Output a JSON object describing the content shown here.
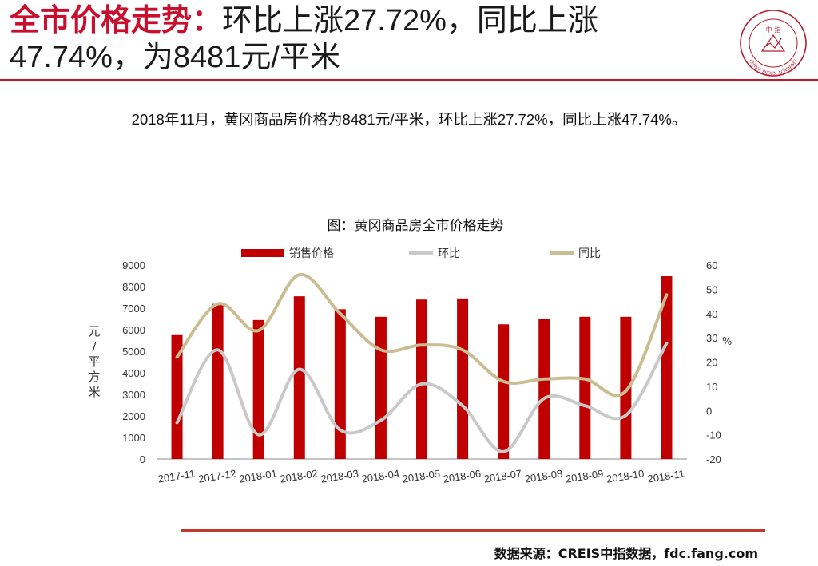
{
  "header": {
    "title_accent": "全市价格走势：",
    "title_rest": "环比上涨27.72%，同比上涨47.74%，为8481元/平米",
    "logo_text": "CHINA INDEX ACADEMY",
    "logo_center": "中 指"
  },
  "description": "2018年11月，黄冈商品房价格为8481元/平米，环比上涨27.72%，同比上涨47.74%。",
  "source": "数据来源：CREIS中指数据，fdc.fang.com",
  "colors": {
    "accent": "#c8102e",
    "bar": "#c00000",
    "mom_line": "#c9c9c9",
    "yoy_line": "#cbbd93"
  },
  "chart_data": {
    "type": "bar",
    "title": "图：黄冈商品房全市价格走势",
    "categories": [
      "2017-11",
      "2017-12",
      "2018-01",
      "2018-02",
      "2018-03",
      "2018-04",
      "2018-05",
      "2018-06",
      "2018-07",
      "2018-08",
      "2018-09",
      "2018-10",
      "2018-11"
    ],
    "ylabel": "元/平方米",
    "y2label": "%",
    "ylim": [
      0,
      9000
    ],
    "y2lim": [
      -20,
      60
    ],
    "yticks": [
      "0",
      "1000",
      "2000",
      "3000",
      "4000",
      "5000",
      "6000",
      "7000",
      "8000",
      "9000"
    ],
    "y2ticks": [
      "-20",
      "-10",
      "0",
      "10",
      "20",
      "30",
      "40",
      "50",
      "60"
    ],
    "legend_position": "top",
    "grid": false,
    "series": [
      {
        "name": "销售价格",
        "type": "bar",
        "axis": "left",
        "values": [
          5750,
          7200,
          6450,
          7550,
          6950,
          6600,
          7400,
          7450,
          6250,
          6500,
          6600,
          6600,
          8481
        ]
      },
      {
        "name": "环比",
        "type": "line",
        "axis": "right",
        "values": [
          -5,
          25,
          -10,
          17,
          -8,
          -4,
          11,
          2,
          -17,
          5,
          2,
          -2,
          27.72
        ]
      },
      {
        "name": "同比",
        "type": "line",
        "axis": "right",
        "values": [
          22,
          44,
          33,
          56,
          40,
          25,
          27,
          25,
          12,
          13,
          13,
          8,
          47.74
        ]
      }
    ]
  }
}
